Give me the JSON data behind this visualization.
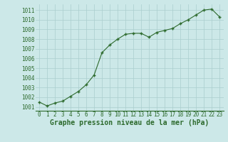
{
  "x": [
    0,
    1,
    2,
    3,
    4,
    5,
    6,
    7,
    8,
    9,
    10,
    11,
    12,
    13,
    14,
    15,
    16,
    17,
    18,
    19,
    20,
    21,
    22,
    23
  ],
  "y": [
    1001.5,
    1001.1,
    1001.4,
    1001.6,
    1002.1,
    1002.6,
    1003.3,
    1004.3,
    1006.6,
    1007.4,
    1008.0,
    1008.5,
    1008.6,
    1008.6,
    1008.2,
    1008.7,
    1008.9,
    1009.1,
    1009.6,
    1010.0,
    1010.5,
    1011.0,
    1011.1,
    1010.3
  ],
  "line_color": "#2d6a2d",
  "marker": "+",
  "marker_size": 3.5,
  "marker_lw": 1.0,
  "line_width": 0.8,
  "bg_color": "#cce8e8",
  "grid_color": "#aacece",
  "xlabel": "Graphe pression niveau de la mer (hPa)",
  "xlabel_fontsize": 7.0,
  "ylabel_ticks": [
    1001,
    1002,
    1003,
    1004,
    1005,
    1006,
    1007,
    1008,
    1009,
    1010,
    1011
  ],
  "ylim": [
    1000.6,
    1011.6
  ],
  "xlim": [
    -0.5,
    23.5
  ],
  "tick_fontsize": 5.5,
  "tick_color": "#2d6a2d",
  "label_color": "#2d6a2d"
}
